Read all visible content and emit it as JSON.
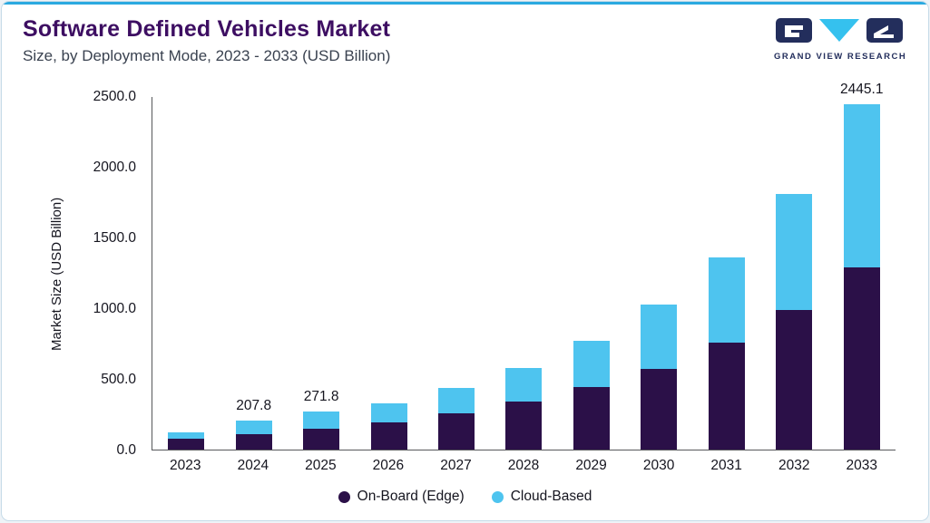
{
  "header": {
    "title": "Software Defined Vehicles Market",
    "subtitle": "Size, by Deployment Mode, 2023 - 2033 (USD Billion)",
    "logo_text": "GRAND VIEW RESEARCH"
  },
  "colors": {
    "accent_bar": "#2aa9e0",
    "title_purple": "#3d0e62",
    "logo_navy": "#232e5c",
    "logo_cyan": "#35c1ee"
  },
  "chart_data": {
    "type": "bar",
    "stacked": true,
    "title": "Software Defined Vehicles Market",
    "subtitle": "Size, by Deployment Mode, 2023 - 2033 (USD Billion)",
    "ylabel": "Market Size (USD Billion)",
    "ylim": [
      0,
      2500
    ],
    "ytick_labels": [
      "0.0",
      "500.0",
      "1000.0",
      "1500.0",
      "2000.0",
      "2500.0"
    ],
    "categories": [
      "2023",
      "2024",
      "2025",
      "2026",
      "2027",
      "2028",
      "2029",
      "2030",
      "2031",
      "2032",
      "2033"
    ],
    "series": [
      {
        "name": "On-Board (Edge)",
        "color": "#2B1048",
        "values": [
          78,
          112,
          146,
          193,
          257,
          337,
          440,
          570,
          755,
          990,
          1290
        ]
      },
      {
        "name": "Cloud-Based",
        "color": "#4EC4EF",
        "values": [
          47,
          95.8,
          125.8,
          137,
          178,
          238,
          330,
          455,
          605,
          820,
          1155.1
        ]
      }
    ],
    "bar_labels": {
      "2024": "207.8",
      "2025": "271.8",
      "2033": "2445.1"
    },
    "legend_position": "bottom",
    "grid": false
  }
}
